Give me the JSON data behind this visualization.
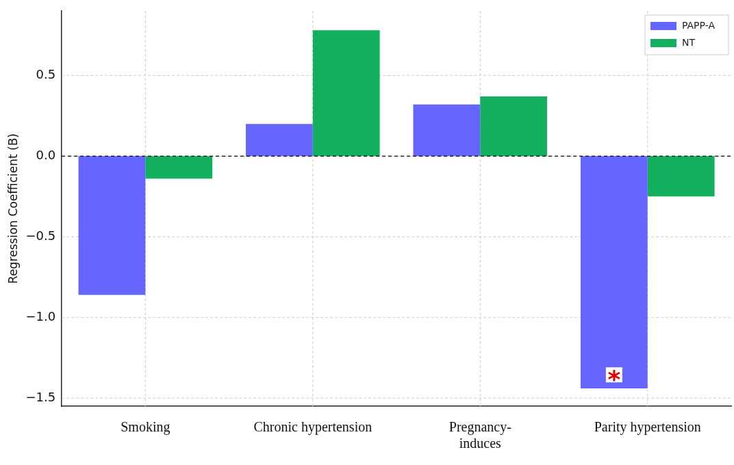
{
  "chart_data": {
    "type": "bar",
    "ylabel": "Regression Coefficient (B)",
    "categories": [
      "Smoking",
      "Chronic hypertension",
      "Pregnancy-induces",
      "Parity hypertension"
    ],
    "series": [
      {
        "name": "PAPP-A",
        "color": "#6666ff",
        "values": [
          -0.86,
          0.2,
          0.32,
          -1.44
        ]
      },
      {
        "name": "NT",
        "color": "#12b05e",
        "values": [
          -0.14,
          0.78,
          0.37,
          -0.25
        ]
      }
    ],
    "ylim": [
      -1.55,
      0.9
    ],
    "yticks": [
      {
        "value": -1.5,
        "label": "−1.5"
      },
      {
        "value": -1.0,
        "label": "−1.0"
      },
      {
        "value": -0.5,
        "label": "−0.5"
      },
      {
        "value": 0,
        "label": "0.0"
      },
      {
        "value": 0.5,
        "label": "0.5"
      }
    ],
    "ref_lines": [
      {
        "axis": "y",
        "value": 0,
        "color": "#000000",
        "line_style": "dashed"
      }
    ],
    "annotations": [
      {
        "text": "*",
        "x": "Parity hypertension",
        "y": -1.36
      }
    ],
    "grid": true,
    "legend": "top right"
  }
}
